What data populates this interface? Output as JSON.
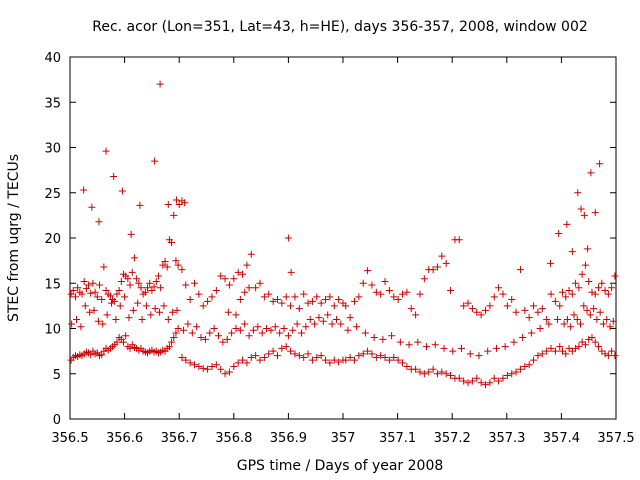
{
  "chart_data": {
    "type": "scatter",
    "title": "Rec. acor (Lon=351, Lat=43, h=HE), days 356-357, 2008, window 002",
    "xlabel": "GPS time / Days of year 2008",
    "ylabel": "STEC from uqrg / TECUs",
    "xlim": [
      356.5,
      357.5
    ],
    "ylim": [
      0,
      40
    ],
    "xticks": [
      "356.5",
      "356.6",
      "356.7",
      "356.8",
      "356.9",
      "357",
      "357.1",
      "357.2",
      "357.3",
      "357.4",
      "357.5"
    ],
    "yticks": [
      "0",
      "5",
      "10",
      "15",
      "20",
      "25",
      "30",
      "35",
      "40"
    ],
    "grid": false,
    "legend": "none",
    "marker": "plus",
    "color": "#cc0000",
    "series": [
      {
        "x": [
          356.502,
          356.506,
          356.51,
          356.514,
          356.518,
          356.522,
          356.526,
          356.53,
          356.534,
          356.538,
          356.542,
          356.546,
          356.55,
          356.554,
          356.558,
          356.562,
          356.566,
          356.57,
          356.574,
          356.578,
          356.582,
          356.586,
          356.59,
          356.594,
          356.598,
          356.602,
          356.606,
          356.61,
          356.614,
          356.618,
          356.622,
          356.626,
          356.63,
          356.634,
          356.638,
          356.642,
          356.646,
          356.65,
          356.654,
          356.658,
          356.662,
          356.666,
          356.67,
          356.674,
          356.678,
          356.682,
          356.686,
          356.69,
          356.694,
          356.698,
          356.502,
          356.506,
          356.51,
          356.514,
          356.518,
          356.522,
          356.526,
          356.53,
          356.534,
          356.538,
          356.542,
          356.546,
          356.55,
          356.554,
          356.558,
          356.562,
          356.566,
          356.57,
          356.574,
          356.578,
          356.582,
          356.586,
          356.59,
          356.594,
          356.598,
          356.602,
          356.606,
          356.61,
          356.614,
          356.618,
          356.622,
          356.626,
          356.63,
          356.634,
          356.638,
          356.642,
          356.646,
          356.65,
          356.654,
          356.658,
          356.662,
          356.666,
          356.67,
          356.674,
          356.678,
          356.682,
          356.686,
          356.69,
          356.694,
          356.698,
          356.503,
          356.512,
          356.52,
          356.528,
          356.536,
          356.544,
          356.552,
          356.56,
          356.568,
          356.576,
          356.584,
          356.592,
          356.6,
          356.608,
          356.616,
          356.624,
          356.632,
          356.64,
          356.648,
          356.656,
          356.664,
          356.672,
          356.68,
          356.688,
          356.696,
          356.525,
          356.54,
          356.553,
          356.566,
          356.58,
          356.596,
          356.612,
          356.628,
          356.655,
          356.665,
          356.68,
          356.695,
          356.7,
          356.71,
          356.705
        ],
        "y": [
          13.8,
          14.2,
          13.5,
          14.5,
          14.0,
          13.8,
          15.2,
          14.4,
          14.8,
          13.9,
          15.0,
          14.0,
          13.5,
          14.8,
          13.2,
          16.8,
          14.2,
          13.8,
          13.6,
          13.2,
          13.0,
          13.8,
          14.2,
          15.2,
          16.0,
          15.8,
          15.5,
          14.8,
          16.2,
          17.8,
          15.5,
          15.0,
          14.5,
          13.8,
          14.0,
          14.5,
          15.0,
          14.2,
          14.6,
          15.2,
          15.8,
          14.5,
          17.0,
          17.4,
          16.8,
          19.8,
          19.5,
          22.5,
          17.5,
          17.0,
          6.5,
          6.8,
          7.0,
          6.9,
          7.1,
          7.0,
          7.2,
          7.4,
          7.3,
          7.1,
          7.5,
          7.2,
          7.3,
          7.0,
          7.1,
          7.5,
          7.8,
          7.6,
          7.8,
          8.0,
          8.2,
          8.5,
          9.0,
          8.8,
          8.5,
          9.2,
          8.0,
          7.8,
          8.2,
          7.9,
          7.8,
          7.6,
          7.8,
          7.5,
          7.4,
          7.3,
          7.5,
          7.6,
          7.4,
          7.5,
          7.3,
          7.4,
          7.6,
          7.5,
          7.8,
          8.0,
          8.5,
          9.0,
          9.5,
          10.0,
          10.5,
          11.0,
          10.2,
          12.5,
          11.8,
          12.0,
          10.8,
          10.5,
          11.5,
          12.8,
          11.0,
          12.5,
          13.5,
          11.2,
          12.0,
          12.8,
          11.0,
          12.5,
          11.5,
          12.2,
          11.8,
          12.5,
          11.0,
          11.8,
          12.0,
          25.3,
          23.4,
          21.8,
          29.6,
          26.8,
          25.2,
          20.4,
          23.6,
          28.5,
          37.0,
          23.7,
          24.2,
          23.7,
          23.9,
          24.1
        ],
        "name": ""
      },
      {
        "x": [
          356.705,
          356.712,
          356.72,
          356.728,
          356.736,
          356.744,
          356.752,
          356.76,
          356.768,
          356.776,
          356.784,
          356.792,
          356.8,
          356.808,
          356.816,
          356.824,
          356.832,
          356.84,
          356.848,
          356.856,
          356.864,
          356.872,
          356.88,
          356.888,
          356.896,
          356.904,
          356.912,
          356.92,
          356.928,
          356.936,
          356.944,
          356.952,
          356.96,
          356.968,
          356.976,
          356.984,
          356.992,
          357.0,
          356.705,
          356.712,
          356.72,
          356.728,
          356.736,
          356.744,
          356.752,
          356.76,
          356.768,
          356.776,
          356.784,
          356.792,
          356.8,
          356.808,
          356.816,
          356.824,
          356.832,
          356.84,
          356.848,
          356.856,
          356.864,
          356.872,
          356.88,
          356.888,
          356.896,
          356.904,
          356.912,
          356.92,
          356.928,
          356.936,
          356.944,
          356.952,
          356.96,
          356.968,
          356.976,
          356.984,
          356.992,
          357.0,
          356.708,
          356.716,
          356.724,
          356.732,
          356.74,
          356.748,
          356.756,
          356.764,
          356.772,
          356.78,
          356.788,
          356.796,
          356.804,
          356.812,
          356.82,
          356.828,
          356.836,
          356.844,
          356.852,
          356.86,
          356.868,
          356.876,
          356.884,
          356.892,
          356.9,
          356.908,
          356.916,
          356.924,
          356.932,
          356.94,
          356.948,
          356.956,
          356.964,
          356.972,
          356.98,
          356.988,
          356.996,
          356.9,
          356.905,
          356.82,
          356.828,
          356.812,
          356.804,
          356.79
        ],
        "y": [
          16.5,
          14.8,
          13.2,
          15.0,
          13.8,
          12.5,
          13.0,
          13.5,
          14.2,
          15.8,
          15.5,
          14.8,
          15.5,
          16.2,
          16.0,
          17.0,
          18.2,
          14.5,
          15.0,
          13.5,
          13.8,
          13.0,
          13.2,
          12.8,
          13.5,
          12.5,
          13.5,
          12.2,
          13.8,
          12.8,
          13.0,
          13.5,
          12.8,
          13.2,
          13.5,
          12.5,
          13.2,
          12.8,
          6.8,
          6.5,
          6.2,
          6.0,
          5.8,
          5.6,
          5.5,
          5.8,
          6.0,
          5.5,
          5.0,
          5.2,
          5.8,
          6.2,
          6.5,
          6.2,
          6.8,
          7.0,
          6.5,
          6.8,
          7.2,
          7.5,
          7.0,
          7.8,
          8.0,
          7.5,
          7.2,
          7.0,
          6.8,
          7.2,
          6.5,
          6.8,
          7.0,
          6.5,
          6.2,
          6.5,
          6.3,
          6.5,
          9.8,
          10.5,
          9.5,
          10.2,
          9.0,
          8.8,
          9.5,
          10.0,
          9.2,
          8.5,
          8.8,
          9.5,
          10.0,
          9.8,
          10.5,
          9.2,
          9.8,
          10.2,
          9.5,
          10.0,
          9.8,
          10.2,
          9.5,
          10.0,
          9.2,
          9.8,
          10.5,
          9.5,
          10.2,
          11.0,
          10.5,
          11.2,
          10.8,
          11.5,
          10.5,
          11.0,
          10.5,
          20.0,
          16.2,
          14.0,
          14.5,
          13.2,
          11.5,
          11.8
        ],
        "name": ""
      },
      {
        "x": [
          357.005,
          357.013,
          357.021,
          357.029,
          357.037,
          357.045,
          357.053,
          357.061,
          357.069,
          357.077,
          357.085,
          357.093,
          357.101,
          357.109,
          357.117,
          357.125,
          357.133,
          357.141,
          357.149,
          357.157,
          357.165,
          357.173,
          357.181,
          357.189,
          357.197,
          357.205,
          357.213,
          357.221,
          357.229,
          357.237,
          357.245,
          357.253,
          357.261,
          357.269,
          357.277,
          357.285,
          357.293,
          357.301,
          357.309,
          357.317,
          357.325,
          357.333,
          357.341,
          357.349,
          357.357,
          357.365,
          357.373,
          357.381,
          357.389,
          357.397,
          357.005,
          357.013,
          357.021,
          357.029,
          357.037,
          357.045,
          357.053,
          357.061,
          357.069,
          357.077,
          357.085,
          357.093,
          357.101,
          357.109,
          357.117,
          357.125,
          357.133,
          357.141,
          357.149,
          357.157,
          357.165,
          357.173,
          357.181,
          357.189,
          357.197,
          357.205,
          357.213,
          357.221,
          357.229,
          357.237,
          357.245,
          357.253,
          357.261,
          357.269,
          357.277,
          357.285,
          357.293,
          357.301,
          357.309,
          357.317,
          357.325,
          357.333,
          357.341,
          357.349,
          357.357,
          357.365,
          357.373,
          357.381,
          357.389,
          357.397,
          357.009,
          357.025,
          357.041,
          357.057,
          357.073,
          357.089,
          357.105,
          357.121,
          357.137,
          357.153,
          357.169,
          357.185,
          357.201,
          357.217,
          357.233,
          357.249,
          357.265,
          357.281,
          357.297,
          357.313,
          357.329,
          357.345,
          357.361,
          357.377,
          357.393
        ],
        "y": [
          12.5,
          11.2,
          13.0,
          13.5,
          15.0,
          16.4,
          14.8,
          14.0,
          13.8,
          15.2,
          14.2,
          13.5,
          13.2,
          13.8,
          14.0,
          12.2,
          11.5,
          13.8,
          15.5,
          16.5,
          16.5,
          16.8,
          18.0,
          17.2,
          14.2,
          19.8,
          19.8,
          12.5,
          12.8,
          12.2,
          11.8,
          11.5,
          12.0,
          12.5,
          13.5,
          14.5,
          13.8,
          12.5,
          13.2,
          11.8,
          16.5,
          12.0,
          11.2,
          12.5,
          11.8,
          12.2,
          11.0,
          13.8,
          13.0,
          12.5,
          6.5,
          6.8,
          6.5,
          7.0,
          7.2,
          7.5,
          7.2,
          6.8,
          7.0,
          6.8,
          6.5,
          6.8,
          6.5,
          6.2,
          5.8,
          5.5,
          5.5,
          5.2,
          5.0,
          5.2,
          5.5,
          5.0,
          5.2,
          5.0,
          4.8,
          4.5,
          4.5,
          4.2,
          4.0,
          4.2,
          4.5,
          4.0,
          3.8,
          4.0,
          4.5,
          4.2,
          4.5,
          4.8,
          5.0,
          5.2,
          5.5,
          5.8,
          6.0,
          6.5,
          7.0,
          7.2,
          7.5,
          7.8,
          7.5,
          8.0,
          9.8,
          10.2,
          9.5,
          9.0,
          8.8,
          9.2,
          8.5,
          8.2,
          8.5,
          8.0,
          8.2,
          7.8,
          7.5,
          7.8,
          7.2,
          7.0,
          7.5,
          7.8,
          8.0,
          8.5,
          9.0,
          9.5,
          10.0,
          10.5,
          11.0
        ],
        "name": ""
      },
      {
        "x": [
          357.402,
          357.408,
          357.414,
          357.42,
          357.426,
          357.432,
          357.438,
          357.444,
          357.45,
          357.456,
          357.462,
          357.468,
          357.474,
          357.48,
          357.486,
          357.492,
          357.498,
          357.402,
          357.408,
          357.414,
          357.42,
          357.426,
          357.432,
          357.438,
          357.444,
          357.45,
          357.456,
          357.462,
          357.468,
          357.474,
          357.48,
          357.486,
          357.492,
          357.498,
          357.405,
          357.411,
          357.417,
          357.423,
          357.429,
          357.435,
          357.441,
          357.447,
          357.453,
          357.459,
          357.465,
          357.471,
          357.477,
          357.483,
          357.489,
          357.495,
          357.38,
          357.395,
          357.41,
          357.42,
          357.43,
          357.436,
          357.442,
          357.448,
          357.454,
          357.462,
          357.47
        ],
        "y": [
          14.0,
          13.5,
          14.2,
          13.8,
          15.0,
          14.5,
          16.0,
          17.0,
          15.2,
          14.0,
          13.8,
          14.5,
          15.0,
          14.2,
          13.8,
          14.5,
          15.8,
          7.5,
          7.2,
          7.8,
          7.5,
          7.8,
          8.0,
          8.5,
          8.2,
          8.8,
          9.0,
          8.5,
          8.0,
          7.5,
          7.2,
          7.0,
          7.5,
          7.0,
          10.5,
          11.0,
          10.2,
          11.5,
          11.0,
          10.5,
          12.5,
          12.0,
          11.5,
          12.2,
          11.0,
          11.8,
          10.5,
          11.0,
          10.2,
          10.8,
          17.2,
          20.5,
          21.5,
          18.5,
          25.0,
          23.2,
          22.5,
          18.8,
          27.2,
          22.8,
          28.2
        ],
        "name": ""
      }
    ]
  }
}
